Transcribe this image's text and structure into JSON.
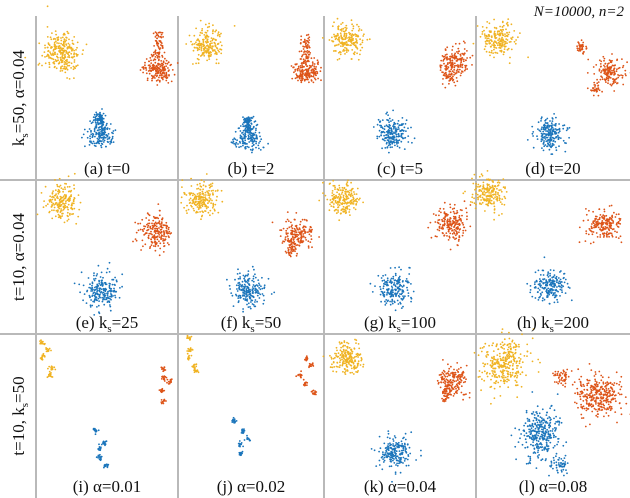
{
  "figure": {
    "annotation": "N=10000, n=2",
    "colors": {
      "yellow": "#F0B323",
      "orange": "#DD5418",
      "blue": "#1B75BB",
      "divider": "#b9b9b9"
    }
  },
  "rows": [
    {
      "label": "k",
      "sub": "s",
      "rest": "=50, α=0.04"
    },
    {
      "label": "t=10, α=0.04",
      "sub": "",
      "rest": ""
    },
    {
      "label": "t=10, k",
      "sub": "s",
      "rest": "=50"
    }
  ],
  "chart_data": [
    {
      "type": "scatter",
      "caption": "(a) t=0",
      "caption_parts": [
        "(a) t=0",
        "",
        ""
      ],
      "clusters": [
        {
          "color": "yellow",
          "shape": "smear"
        },
        {
          "color": "orange",
          "shape": "spiky"
        },
        {
          "color": "blue",
          "shape": "cone"
        }
      ]
    },
    {
      "type": "scatter",
      "caption": "(b) t=2",
      "caption_parts": [
        "(b) t=2",
        "",
        ""
      ],
      "clusters": [
        {
          "color": "yellow",
          "shape": "blob"
        },
        {
          "color": "orange",
          "shape": "spiky"
        },
        {
          "color": "blue",
          "shape": "cone"
        }
      ]
    },
    {
      "type": "scatter",
      "caption": "(c) t=5",
      "caption_parts": [
        "(c) t=5",
        "",
        ""
      ],
      "clusters": [
        {
          "color": "yellow",
          "shape": "blob"
        },
        {
          "color": "orange",
          "shape": "blob2"
        },
        {
          "color": "blue",
          "shape": "blob"
        }
      ]
    },
    {
      "type": "scatter",
      "caption": "(d) t=20",
      "caption_parts": [
        "(d) t=20",
        "",
        ""
      ],
      "clusters": [
        {
          "color": "yellow",
          "shape": "blob"
        },
        {
          "color": "orange",
          "shape": "split3"
        },
        {
          "color": "blue",
          "shape": "blob"
        }
      ]
    },
    {
      "type": "scatter",
      "caption": "(e) ks=25",
      "caption_parts": [
        "(e) k",
        "s",
        "=25"
      ],
      "clusters": [
        {
          "color": "yellow",
          "shape": "blob"
        },
        {
          "color": "orange",
          "shape": "blob"
        },
        {
          "color": "blue",
          "shape": "blob"
        }
      ]
    },
    {
      "type": "scatter",
      "caption": "(f) ks=50",
      "caption_parts": [
        "(f) k",
        "s",
        "=50"
      ],
      "clusters": [
        {
          "color": "yellow",
          "shape": "blob"
        },
        {
          "color": "orange",
          "shape": "blob2"
        },
        {
          "color": "blue",
          "shape": "blob"
        }
      ]
    },
    {
      "type": "scatter",
      "caption": "(g) ks=100",
      "caption_parts": [
        "(g) k",
        "s",
        "=100"
      ],
      "clusters": [
        {
          "color": "yellow",
          "shape": "blob"
        },
        {
          "color": "orange",
          "shape": "blob"
        },
        {
          "color": "blue",
          "shape": "blob"
        }
      ]
    },
    {
      "type": "scatter",
      "caption": "(h) ks=200",
      "caption_parts": [
        "(h) k",
        "s",
        "=200"
      ],
      "clusters": [
        {
          "color": "yellow",
          "shape": "blob"
        },
        {
          "color": "orange",
          "shape": "blob"
        },
        {
          "color": "blue",
          "shape": "blob"
        }
      ]
    },
    {
      "type": "scatter",
      "caption": "(i) α=0.01",
      "caption_parts": [
        "(i) α=0.01",
        "",
        ""
      ],
      "clusters": [
        {
          "color": "yellow",
          "shape": "dots"
        },
        {
          "color": "orange",
          "shape": "dots"
        },
        {
          "color": "blue",
          "shape": "dots"
        }
      ]
    },
    {
      "type": "scatter",
      "caption": "(j) α=0.02",
      "caption_parts": [
        "(j) α=0.02",
        "",
        ""
      ],
      "clusters": [
        {
          "color": "yellow",
          "shape": "dots"
        },
        {
          "color": "orange",
          "shape": "dots"
        },
        {
          "color": "blue",
          "shape": "dots"
        }
      ]
    },
    {
      "type": "scatter",
      "caption": "(k) α=0.04",
      "caption_parts": [
        "(k) α=0.04",
        "",
        ""
      ],
      "clusters": [
        {
          "color": "yellow",
          "shape": "blob"
        },
        {
          "color": "orange",
          "shape": "blob2"
        },
        {
          "color": "blue",
          "shape": "blob"
        }
      ]
    },
    {
      "type": "scatter",
      "caption": "(l) α=0.08",
      "caption_parts": [
        "(l) α=0.08",
        "",
        ""
      ],
      "clusters": [
        {
          "color": "yellow",
          "shape": "big"
        },
        {
          "color": "orange",
          "shape": "big"
        },
        {
          "color": "blue",
          "shape": "big"
        }
      ]
    }
  ]
}
